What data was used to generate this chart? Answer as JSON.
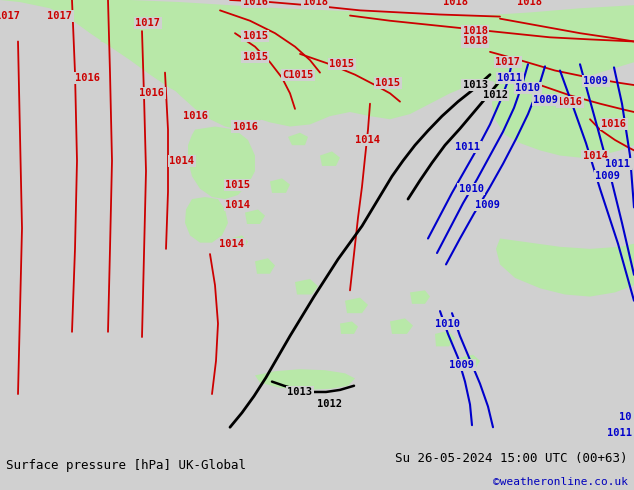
{
  "title_left": "Surface pressure [hPa] UK-Global",
  "title_right": "Su 26-05-2024 15:00 UTC (00+63)",
  "credit": "©weatheronline.co.uk",
  "bg_color": "#d0d0d0",
  "green_fill": "#b8e8a8",
  "fig_width": 6.34,
  "fig_height": 4.9,
  "dpi": 100,
  "bottom_bar_color": "#e0e0e0",
  "title_fontsize": 9.0,
  "credit_color": "#0000bb",
  "credit_fontsize": 8,
  "red": "#cc0000",
  "black": "#000000",
  "blue": "#0000cc",
  "label_fontsize": 7.5
}
